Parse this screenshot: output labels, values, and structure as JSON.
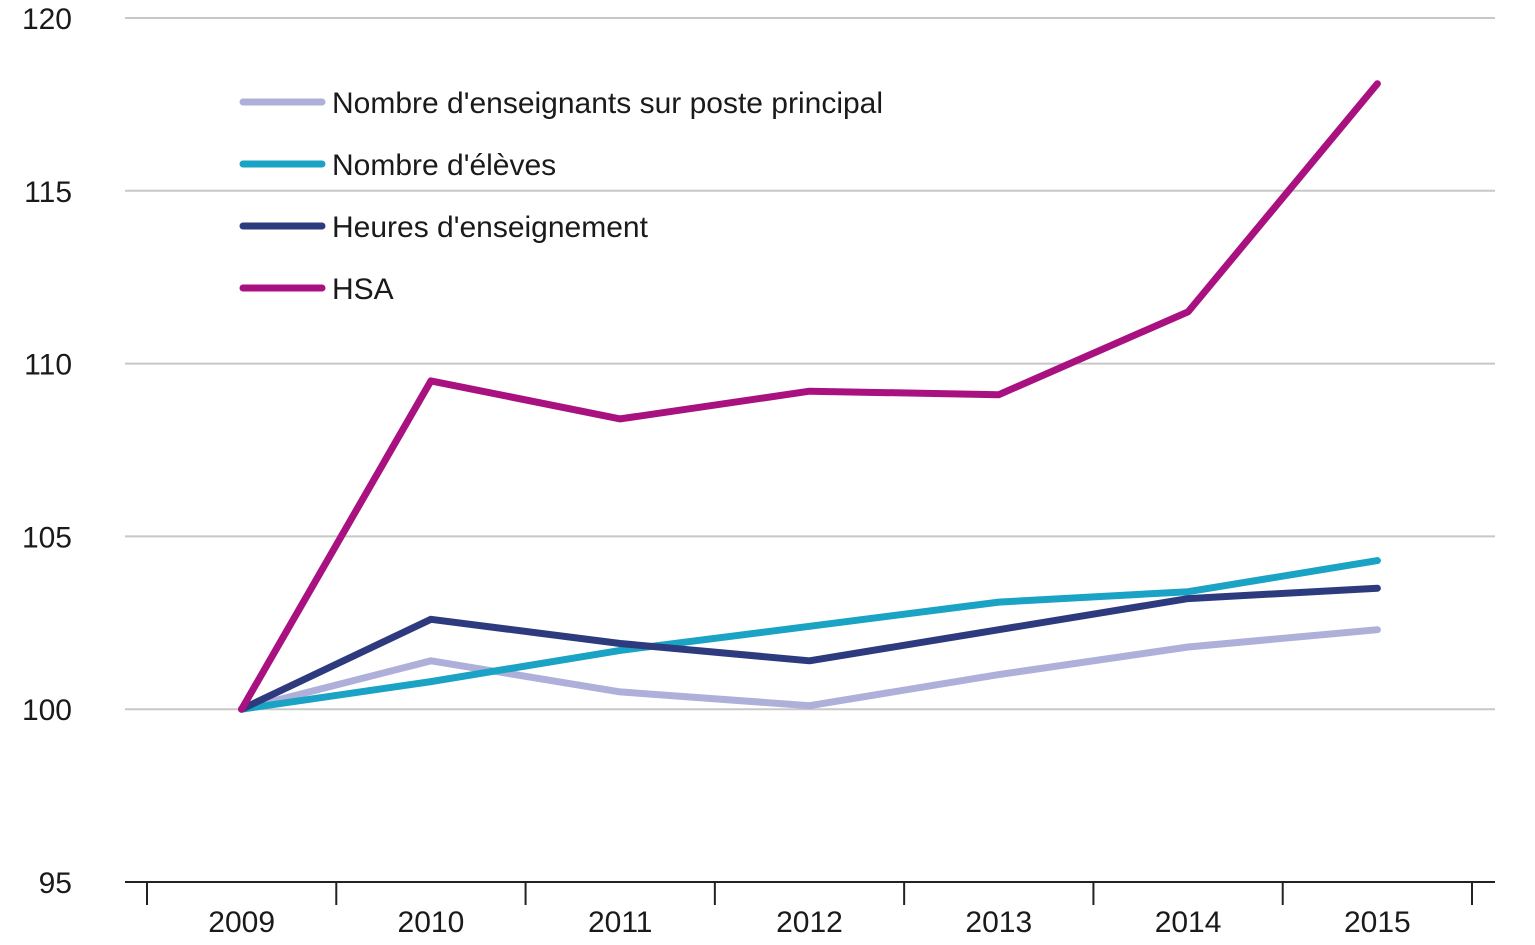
{
  "chart_data": {
    "type": "line",
    "title": "",
    "xlabel": "",
    "ylabel": "",
    "x": [
      "2009",
      "2010",
      "2011",
      "2012",
      "2013",
      "2014",
      "2015"
    ],
    "y_ticks": [
      "95",
      "100",
      "105",
      "110",
      "115",
      "120"
    ],
    "ylim": [
      95,
      120
    ],
    "grid": true,
    "legend_position": "top-left",
    "series": [
      {
        "name": "Nombre d'enseignants sur poste principal",
        "color": "#aeb0d9",
        "values": [
          100.0,
          101.4,
          100.5,
          100.1,
          101.0,
          101.8,
          102.3
        ]
      },
      {
        "name": "Nombre d'élèves",
        "color": "#1aa3c4",
        "values": [
          100.0,
          100.8,
          101.7,
          102.4,
          103.1,
          103.4,
          104.3
        ]
      },
      {
        "name": "Heures d'enseignement",
        "color": "#2e3a7e",
        "values": [
          100.0,
          102.6,
          101.9,
          101.4,
          102.3,
          103.2,
          103.5
        ]
      },
      {
        "name": "HSA",
        "color": "#a8117f",
        "values": [
          100.0,
          109.5,
          108.4,
          109.2,
          109.1,
          111.5,
          118.1
        ]
      }
    ]
  }
}
